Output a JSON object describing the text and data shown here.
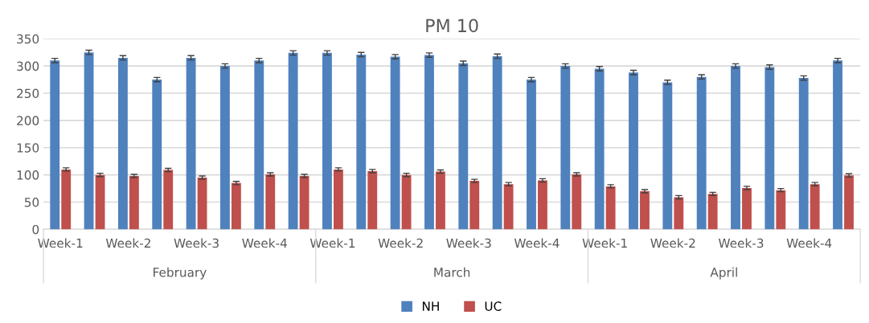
{
  "chart_data": {
    "type": "bar",
    "title": "PM 10",
    "categories": [
      "Week-1",
      null,
      "Week-2",
      null,
      "Week-3",
      null,
      "Week-4",
      null,
      "Week-1",
      null,
      "Week-2",
      null,
      "Week-3",
      null,
      "Week-4",
      null,
      "Week-1",
      null,
      "Week-2",
      null,
      "Week-3",
      null,
      "Week-4",
      null
    ],
    "series": [
      {
        "name": "NH",
        "color": "#4f81bd",
        "values": [
          310,
          325,
          315,
          275,
          315,
          300,
          310,
          324,
          324,
          321,
          317,
          320,
          305,
          318,
          275,
          300,
          295,
          288,
          270,
          280,
          300,
          298,
          278,
          310
        ],
        "errors": [
          4,
          4,
          4,
          4,
          4,
          4,
          4,
          4,
          4,
          4,
          4,
          4,
          4,
          4,
          4,
          4,
          4,
          4,
          4,
          4,
          4,
          4,
          4,
          4
        ]
      },
      {
        "name": "UC",
        "color": "#c0504d",
        "values": [
          110,
          100,
          98,
          109,
          95,
          85,
          101,
          98,
          110,
          107,
          100,
          106,
          89,
          83,
          90,
          101,
          79,
          70,
          59,
          65,
          76,
          72,
          83,
          99
        ],
        "errors": [
          3,
          3,
          3,
          3,
          3,
          3,
          3,
          3,
          3,
          3,
          3,
          3,
          3,
          3,
          3,
          3,
          3,
          3,
          3,
          3,
          3,
          3,
          3,
          3
        ]
      }
    ],
    "annotations": [
      "February",
      "March",
      "April"
    ],
    "ylim": [
      0,
      350
    ],
    "yticks": [
      0,
      50,
      100,
      150,
      200,
      250,
      300,
      350
    ],
    "grid": "y",
    "legend": "bottom"
  }
}
